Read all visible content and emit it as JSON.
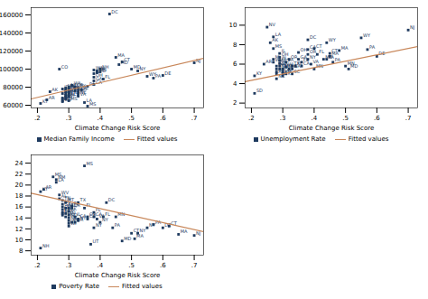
{
  "chart_data": [
    {
      "type": "scatter",
      "x_label": "Climate Change Risk Score",
      "legend": "bottom",
      "grid": false,
      "xlim": [
        0.18,
        0.73
      ],
      "ylim": [
        57000,
        168000
      ],
      "xticks": [
        {
          "value": 0.2,
          "label": ".2"
        },
        {
          "value": 0.3,
          "label": ".3"
        },
        {
          "value": 0.4,
          "label": ".4"
        },
        {
          "value": 0.5,
          "label": ".5"
        },
        {
          "value": 0.6,
          "label": ".6"
        },
        {
          "value": 0.7,
          "label": ".7"
        }
      ],
      "yticks": [
        60000,
        80000,
        100000,
        120000,
        140000,
        160000
      ],
      "series": [
        {
          "name": "Median Family Income",
          "type": "scatter",
          "marker": "square",
          "color": "#1e3a5f",
          "x": [
            0.21,
            0.23,
            0.24,
            0.27,
            0.28,
            0.28,
            0.28,
            0.28,
            0.28,
            0.28,
            0.29,
            0.29,
            0.29,
            0.29,
            0.29,
            0.29,
            0.29,
            0.3,
            0.3,
            0.3,
            0.3,
            0.3,
            0.3,
            0.3,
            0.31,
            0.32,
            0.32,
            0.32,
            0.33,
            0.33,
            0.33,
            0.33,
            0.33,
            0.34,
            0.35,
            0.36,
            0.36,
            0.38,
            0.38,
            0.38,
            0.38,
            0.38,
            0.39,
            0.39,
            0.4,
            0.4,
            0.41,
            0.43,
            0.45,
            0.46,
            0.47,
            0.5,
            0.52,
            0.55,
            0.57,
            0.6,
            0.7
          ],
          "values": [
            62000,
            66000,
            75000,
            100000,
            78000,
            73000,
            68000,
            67000,
            65000,
            64000,
            79000,
            77000,
            75000,
            73000,
            71000,
            69000,
            67000,
            80000,
            78000,
            76000,
            74000,
            72000,
            70000,
            65000,
            82000,
            80000,
            78000,
            76000,
            79000,
            76000,
            74000,
            72000,
            70000,
            77000,
            63000,
            59000,
            81000,
            99000,
            95000,
            91000,
            87000,
            83000,
            98000,
            96000,
            100000,
            97000,
            89000,
            161000,
            113000,
            105000,
            108000,
            100000,
            98000,
            92000,
            90000,
            93000,
            107000
          ],
          "labels": [
            "KY",
            "AR",
            "AK",
            "CO",
            "ID",
            "ND",
            "NE",
            "KS",
            "MO",
            "OK",
            "MN",
            "IA",
            "WI",
            "MI",
            "IN",
            "OH",
            "KY",
            "NE",
            "MN",
            "IA",
            "IL",
            "TN",
            "AL",
            "MS",
            "WA",
            "OR",
            "NV",
            "AZ",
            "TX",
            "GA",
            "SC",
            "NC",
            "VA",
            "FL",
            "LA",
            "MS",
            "PA",
            "WA",
            "IL",
            "OH",
            "GA",
            "CA",
            "VA",
            "MD",
            "NH",
            "RI",
            "FL",
            "DC",
            "MA",
            "MD",
            "CT",
            "MD",
            "NY",
            "WY",
            "PA",
            "DE",
            "NJ"
          ]
        },
        {
          "name": "Fitted values",
          "type": "line",
          "color": "#c8875a",
          "x": [
            0.18,
            0.73
          ],
          "values": [
            67000,
            112000
          ]
        }
      ]
    },
    {
      "type": "scatter",
      "x_label": "Climate Change Risk Score",
      "legend": "bottom",
      "grid": false,
      "xlim": [
        0.18,
        0.73
      ],
      "ylim": [
        1.5,
        11.8
      ],
      "xticks": [
        {
          "value": 0.2,
          "label": ".2"
        },
        {
          "value": 0.3,
          "label": ".3"
        },
        {
          "value": 0.4,
          "label": ".4"
        },
        {
          "value": 0.5,
          "label": ".5"
        },
        {
          "value": 0.6,
          "label": ".6"
        },
        {
          "value": 0.7,
          "label": ".7"
        }
      ],
      "yticks": [
        2,
        4,
        6,
        8,
        10
      ],
      "series": [
        {
          "name": "Unemployment Rate",
          "type": "scatter",
          "marker": "square",
          "color": "#1e3a5f",
          "x": [
            0.21,
            0.21,
            0.24,
            0.25,
            0.26,
            0.27,
            0.27,
            0.27,
            0.27,
            0.28,
            0.28,
            0.28,
            0.28,
            0.28,
            0.29,
            0.29,
            0.29,
            0.29,
            0.29,
            0.29,
            0.3,
            0.3,
            0.3,
            0.3,
            0.3,
            0.31,
            0.31,
            0.31,
            0.32,
            0.32,
            0.33,
            0.33,
            0.33,
            0.34,
            0.35,
            0.35,
            0.36,
            0.36,
            0.38,
            0.38,
            0.38,
            0.38,
            0.39,
            0.4,
            0.4,
            0.41,
            0.43,
            0.44,
            0.44,
            0.45,
            0.45,
            0.46,
            0.48,
            0.5,
            0.51,
            0.55,
            0.57,
            0.6,
            0.7
          ],
          "values": [
            4.8,
            3.0,
            6.0,
            9.8,
            8.2,
            7.6,
            8.8,
            6.5,
            6.2,
            5.8,
            5.5,
            5.2,
            5.0,
            4.5,
            7.1,
            6.7,
            6.4,
            6.1,
            5.8,
            5.5,
            5.5,
            5.2,
            5.0,
            4.8,
            5.5,
            6.2,
            5.7,
            5.0,
            6.5,
            5.5,
            5.8,
            5.5,
            5.0,
            5.8,
            7.2,
            6.5,
            6.2,
            5.8,
            8.5,
            7.5,
            7.0,
            6.5,
            6.0,
            5.5,
            7.6,
            7.0,
            6.5,
            8.2,
            6.5,
            7.1,
            6.8,
            6.2,
            7.4,
            5.8,
            5.5,
            8.7,
            7.5,
            6.8,
            9.5
          ],
          "labels": [
            "KY",
            "SD",
            "AR",
            "NV",
            "AK",
            "MS",
            "LA",
            "MI",
            "WV",
            "GA",
            "TN",
            "AL",
            "AR",
            "NC",
            "IL",
            "OH",
            "IN",
            "MO",
            "GA",
            "TN",
            "MO",
            "OK",
            "KS",
            "TX",
            "NM",
            "VA",
            "WI",
            "IA",
            "OR",
            "CO",
            "TX",
            "GA",
            "SC",
            "FL",
            "OH",
            "GA",
            "FL",
            "CA",
            "DC",
            "CA",
            "OR",
            "NY",
            "VA",
            "MN",
            "CT",
            "FL",
            "MD",
            "WY",
            "PA",
            "CT",
            "MA",
            "PA",
            "MA",
            "MN",
            "MD",
            "WY",
            "PA",
            "DE",
            "NJ"
          ]
        },
        {
          "name": "Fitted values",
          "type": "line",
          "color": "#c8875a",
          "x": [
            0.18,
            0.73
          ],
          "values": [
            4.2,
            7.8
          ]
        }
      ]
    },
    {
      "type": "scatter",
      "x_label": "Climate Change Risk Score",
      "legend": "bottom",
      "grid": false,
      "xlim": [
        0.18,
        0.73
      ],
      "ylim": [
        7.2,
        25.5
      ],
      "xticks": [
        {
          "value": 0.2,
          "label": ".2"
        },
        {
          "value": 0.3,
          "label": ".3"
        },
        {
          "value": 0.4,
          "label": ".4"
        },
        {
          "value": 0.5,
          "label": ".5"
        },
        {
          "value": 0.6,
          "label": ".6"
        },
        {
          "value": 0.7,
          "label": ".7"
        }
      ],
      "yticks": [
        8,
        10,
        12,
        14,
        16,
        18,
        20,
        22,
        24
      ],
      "series": [
        {
          "name": "Poverty Rate",
          "type": "scatter",
          "marker": "square",
          "color": "#1e3a5f",
          "x": [
            0.21,
            0.22,
            0.25,
            0.26,
            0.26,
            0.27,
            0.27,
            0.28,
            0.28,
            0.28,
            0.28,
            0.28,
            0.28,
            0.29,
            0.29,
            0.29,
            0.29,
            0.3,
            0.3,
            0.3,
            0.3,
            0.3,
            0.3,
            0.3,
            0.31,
            0.31,
            0.31,
            0.32,
            0.32,
            0.33,
            0.33,
            0.35,
            0.35,
            0.36,
            0.36,
            0.38,
            0.38,
            0.38,
            0.39,
            0.4,
            0.41,
            0.42,
            0.44,
            0.45,
            0.47,
            0.5,
            0.51,
            0.52,
            0.55,
            0.57,
            0.6,
            0.62,
            0.65,
            0.7,
            0.21,
            0.37,
            0.28,
            0.33
          ],
          "values": [
            18.8,
            19.2,
            21.5,
            21.0,
            20.5,
            18.2,
            17.5,
            17.2,
            16.5,
            16.0,
            15.5,
            15.0,
            14.5,
            16.8,
            15.8,
            14.8,
            14.2,
            15.8,
            15.2,
            14.5,
            14.0,
            13.5,
            13.0,
            12.5,
            16.2,
            15.8,
            13.2,
            14.2,
            13.2,
            16.8,
            13.8,
            23.5,
            15.8,
            14.2,
            13.8,
            15.0,
            14.2,
            12.2,
            13.8,
            13.2,
            14.2,
            16.8,
            12.2,
            14.2,
            9.8,
            11.2,
            10.2,
            11.2,
            12.2,
            12.8,
            12.2,
            12.5,
            11.0,
            10.8,
            8.5,
            9.2,
            14.8,
            13.5
          ],
          "labels": [
            "KY",
            "AR",
            "MS",
            "NM",
            "LA",
            "WV",
            "AL",
            "TN",
            "NC",
            "GA",
            "OK",
            "KS",
            "SD",
            "MT",
            "AZ",
            "TX",
            "MO",
            "AZ",
            "AK",
            "ID",
            "ND",
            "NE",
            "IA",
            "WI",
            "FL",
            "OR",
            "IN",
            "IL",
            "OR",
            "TX",
            "CA",
            "MS",
            "FL",
            "OR",
            "CA",
            "FL",
            "CA",
            "NY",
            "VA",
            "NY",
            "FL",
            "DC",
            "PA",
            "MN",
            "MD",
            "CT",
            "MA",
            "NY",
            "NY",
            "PA",
            "DE",
            "CT",
            "MA",
            "NJ",
            "NH",
            "UT",
            "SC",
            "NY"
          ]
        },
        {
          "name": "Fitted values",
          "type": "line",
          "color": "#c8875a",
          "x": [
            0.18,
            0.73
          ],
          "values": [
            18.5,
            11.5
          ]
        }
      ]
    }
  ]
}
